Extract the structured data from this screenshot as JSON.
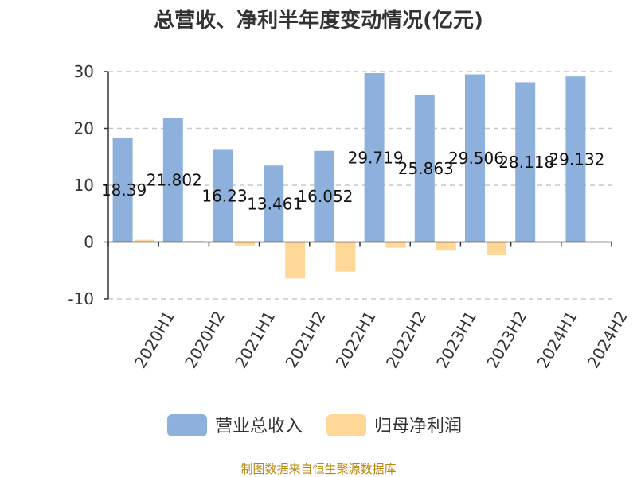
{
  "chart_data": {
    "type": "bar",
    "title": "总营收、净利半年度变动情况(亿元)",
    "categories": [
      "2020H1",
      "2020H2",
      "2021H1",
      "2021H2",
      "2022H1",
      "2022H2",
      "2023H1",
      "2023H2",
      "2024H1",
      "2024H2"
    ],
    "series": [
      {
        "name": "营业总收入",
        "color": "#8eb0dc",
        "values": [
          18.39,
          21.802,
          16.23,
          13.461,
          16.052,
          29.719,
          25.863,
          29.506,
          28.118,
          29.132
        ],
        "labels": [
          "18.39",
          "21.802",
          "16.23",
          "13.461",
          "16.052",
          "29.719",
          "25.863",
          "29.506",
          "28.118",
          "29.132"
        ]
      },
      {
        "name": "归母净利润",
        "color": "#ffd897",
        "values": [
          0.4,
          0.2,
          -0.6,
          -6.4,
          -5.2,
          -1.0,
          -1.5,
          -2.3,
          0.1,
          0.1
        ]
      }
    ],
    "ylim": [
      -10,
      30
    ],
    "yticks": [
      "-10",
      "0",
      "10",
      "20",
      "30"
    ],
    "grid": true,
    "legend_position": "bottom"
  },
  "footer": "制图数据来自恒生聚源数据库"
}
